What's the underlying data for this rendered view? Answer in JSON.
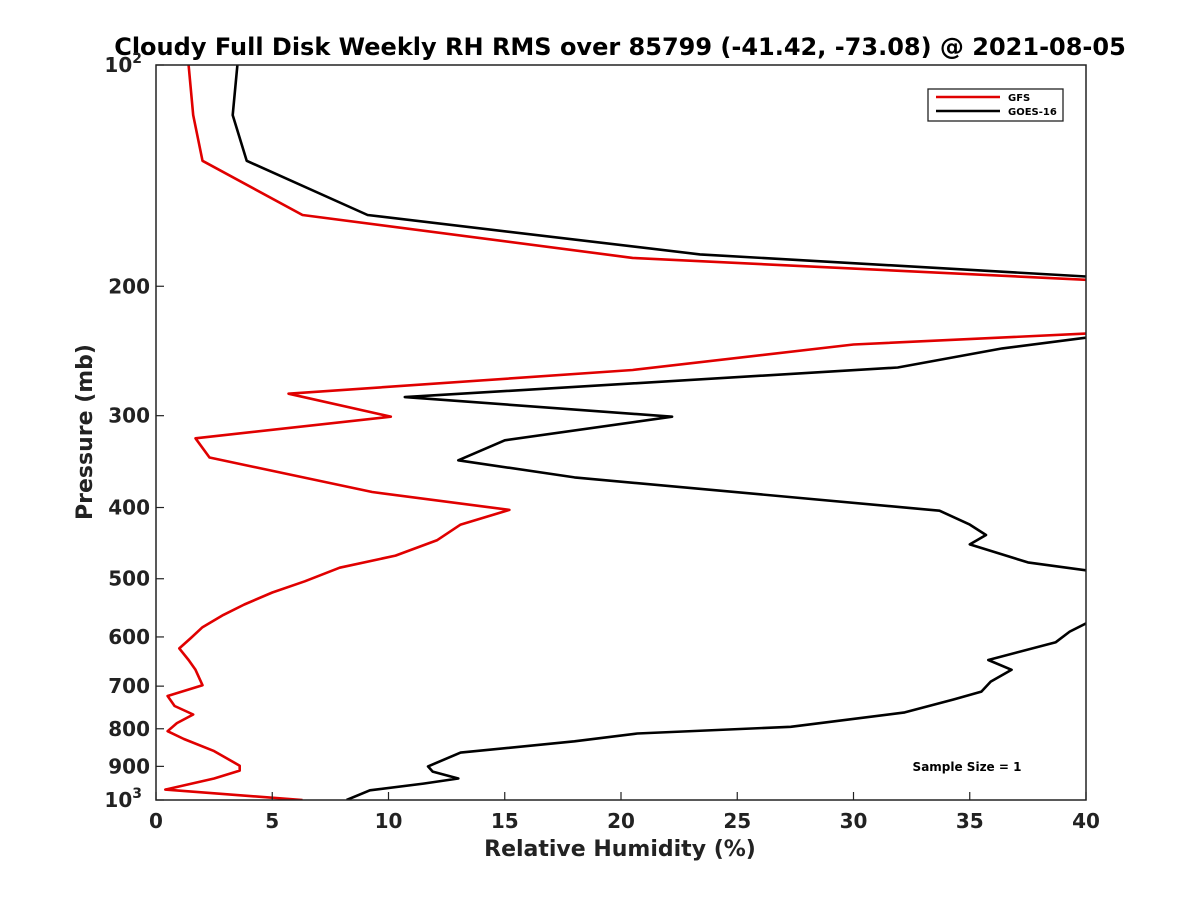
{
  "chart_data": {
    "type": "line",
    "title": "Cloudy Full Disk Weekly RH RMS over 85799 (-41.42, -73.08) @ 2021-08-05",
    "xlabel": "Relative Humidity (%)",
    "ylabel": "Pressure (mb)",
    "xlim": [
      0,
      40
    ],
    "ylim": [
      100,
      1000
    ],
    "yscale": "log",
    "y_reversed": true,
    "xticks": [
      "0",
      "5",
      "10",
      "15",
      "20",
      "25",
      "30",
      "35",
      "40"
    ],
    "yticks": [
      {
        "value": 100,
        "base": "10",
        "exp": "2"
      },
      {
        "value": 200,
        "label": "200"
      },
      {
        "value": 300,
        "label": "300"
      },
      {
        "value": 400,
        "label": "400"
      },
      {
        "value": 500,
        "label": "500"
      },
      {
        "value": 600,
        "label": "600"
      },
      {
        "value": 700,
        "label": "700"
      },
      {
        "value": 800,
        "label": "800"
      },
      {
        "value": 900,
        "label": "900"
      },
      {
        "value": 1000,
        "base": "10",
        "exp": "3"
      }
    ],
    "legend_position": "top-right",
    "annotation": "Sample Size = 1",
    "series": [
      {
        "name": "GFS",
        "color": "#e00000",
        "points": [
          [
            1.4,
            100
          ],
          [
            1.6,
            117
          ],
          [
            2.0,
            135
          ],
          [
            6.3,
            160
          ],
          [
            20.5,
            183
          ],
          [
            40,
            196
          ],
          null,
          [
            40,
            232
          ],
          [
            30,
            240
          ],
          [
            20.5,
            260
          ],
          [
            5.7,
            280
          ],
          [
            10.1,
            301
          ],
          [
            1.7,
            322
          ],
          [
            2.3,
            342
          ],
          [
            9.3,
            381
          ],
          [
            15.2,
            403
          ],
          [
            13.1,
            422
          ],
          [
            12.1,
            443
          ],
          [
            10.3,
            465
          ],
          [
            7.9,
            483
          ],
          [
            6.4,
            504
          ],
          [
            5.0,
            522
          ],
          [
            3.8,
            542
          ],
          [
            2.9,
            560
          ],
          [
            2.0,
            582
          ],
          [
            1.5,
            602
          ],
          [
            1.0,
            622
          ],
          [
            1.4,
            645
          ],
          [
            1.7,
            665
          ],
          [
            2.0,
            698
          ],
          [
            0.5,
            722
          ],
          [
            0.8,
            745
          ],
          [
            1.6,
            765
          ],
          [
            0.9,
            786
          ],
          [
            0.5,
            806
          ],
          [
            1.2,
            826
          ],
          [
            2.5,
            858
          ],
          [
            3.6,
            898
          ],
          [
            3.6,
            912
          ],
          [
            2.5,
            935
          ],
          [
            0.4,
            968
          ],
          [
            6.3,
            1000
          ]
        ]
      },
      {
        "name": "GOES-16",
        "color": "#000000",
        "points": [
          [
            3.5,
            100
          ],
          [
            3.3,
            117
          ],
          [
            3.9,
            135
          ],
          [
            9.1,
            160
          ],
          [
            23.4,
            181
          ],
          [
            40,
            194
          ],
          null,
          [
            40,
            235
          ],
          [
            36.4,
            243
          ],
          [
            31.9,
            258
          ],
          [
            10.7,
            283
          ],
          [
            22.2,
            301
          ],
          [
            15.0,
            324
          ],
          [
            13.0,
            345
          ],
          [
            18.0,
            364
          ],
          [
            33.7,
            404
          ],
          [
            35.0,
            422
          ],
          [
            35.7,
            436
          ],
          [
            35.0,
            449
          ],
          [
            37.5,
            475
          ],
          [
            40,
            487
          ],
          null,
          [
            40,
            575
          ],
          [
            39.3,
            590
          ],
          [
            38.7,
            610
          ],
          [
            35.8,
            645
          ],
          [
            36.8,
            665
          ],
          [
            35.9,
            690
          ],
          [
            35.5,
            712
          ],
          [
            34.3,
            730
          ],
          [
            32.2,
            760
          ],
          [
            27.3,
            795
          ],
          [
            20.7,
            812
          ],
          [
            18.0,
            832
          ],
          [
            13.1,
            862
          ],
          [
            11.7,
            900
          ],
          [
            11.9,
            915
          ],
          [
            13.0,
            935
          ],
          [
            11.5,
            950
          ],
          [
            9.2,
            970
          ],
          [
            8.2,
            1000
          ]
        ]
      }
    ]
  }
}
